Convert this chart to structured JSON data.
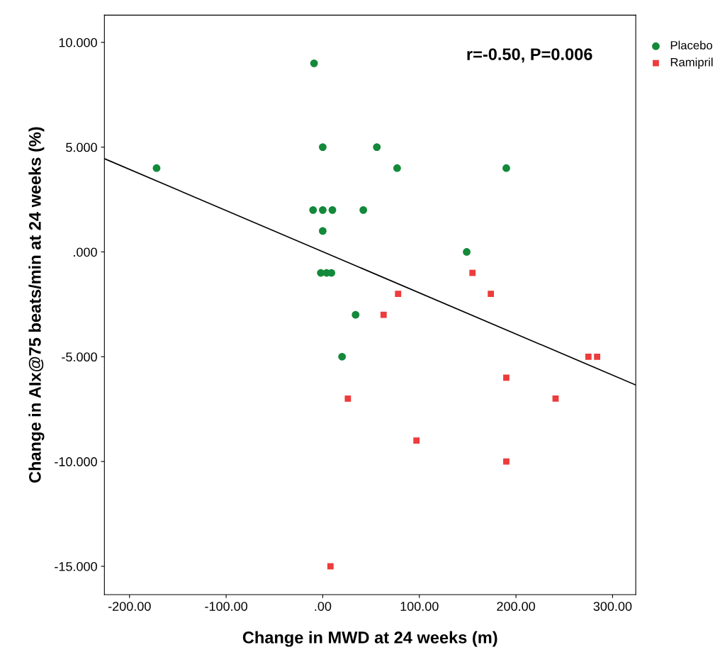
{
  "chart_data": {
    "type": "scatter",
    "xlabel": "Change in MWD at 24 weeks (m)",
    "ylabel": "Change in AIx@75 beats/min at 24 weeks (%)",
    "annotations": [
      "r=-0.50, P=0.006"
    ],
    "xlim": [
      -226,
      324
    ],
    "ylim": [
      -16.35,
      11.3
    ],
    "xticks": [
      {
        "value": -200,
        "label": "-200.00"
      },
      {
        "value": -100,
        "label": "-100.00"
      },
      {
        "value": 0,
        "label": ".00"
      },
      {
        "value": 100,
        "label": "100.00"
      },
      {
        "value": 200,
        "label": "200.00"
      },
      {
        "value": 300,
        "label": "300.00"
      }
    ],
    "yticks": [
      {
        "value": -15,
        "label": "-15.000"
      },
      {
        "value": -10,
        "label": "-10.000"
      },
      {
        "value": -5,
        "label": "-5.000"
      },
      {
        "value": 0,
        "label": ".000"
      },
      {
        "value": 5,
        "label": "5.000"
      },
      {
        "value": 10,
        "label": "10.000"
      }
    ],
    "grid": false,
    "legend": "top right",
    "series": [
      {
        "name": "Placebo",
        "color": "#13893a",
        "marker": "circle",
        "x": [
          -172,
          -9,
          0,
          56,
          77,
          190,
          -10,
          0,
          10,
          42,
          0,
          149,
          -2,
          4,
          9,
          34,
          20
        ],
        "values": [
          4,
          9,
          5,
          5,
          4,
          4,
          2,
          2,
          2,
          2,
          1,
          0,
          -1,
          -1,
          -1,
          -3,
          -5
        ]
      },
      {
        "name": "Ramipril",
        "color": "#ee3b3b",
        "marker": "square",
        "x": [
          155,
          78,
          174,
          63,
          275,
          284,
          190,
          26,
          241,
          97,
          190,
          8
        ],
        "values": [
          -1,
          -2,
          -2,
          -3,
          -5,
          -5,
          -6,
          -7,
          -7,
          -9,
          -10,
          -15
        ]
      },
      {
        "type": "line",
        "color": "#000000",
        "marker": "none",
        "x": [
          -226,
          324
        ],
        "values": [
          4.45,
          -6.35
        ]
      }
    ]
  }
}
